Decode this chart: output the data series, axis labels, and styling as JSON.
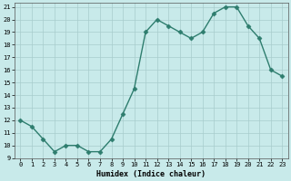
{
  "x": [
    0,
    1,
    2,
    3,
    4,
    5,
    6,
    7,
    8,
    9,
    10,
    11,
    12,
    13,
    14,
    15,
    16,
    17,
    18,
    19,
    20,
    21,
    22,
    23
  ],
  "y": [
    12,
    11.5,
    10.5,
    9.5,
    10,
    10,
    9.5,
    9.5,
    10.5,
    12.5,
    14.5,
    19,
    20,
    19.5,
    19,
    18.5,
    19,
    20.5,
    21,
    21,
    19.5,
    18.5,
    16,
    15.5
  ],
  "line_color": "#2e7d6e",
  "marker_color": "#2e7d6e",
  "bg_color": "#c8eaea",
  "grid_color": "#a8cccc",
  "xlabel": "Humidex (Indice chaleur)",
  "ylim": [
    9,
    21
  ],
  "xlim_min": -0.5,
  "xlim_max": 23.5,
  "yticks": [
    9,
    10,
    11,
    12,
    13,
    14,
    15,
    16,
    17,
    18,
    19,
    20,
    21
  ],
  "xticks": [
    0,
    1,
    2,
    3,
    4,
    5,
    6,
    7,
    8,
    9,
    10,
    11,
    12,
    13,
    14,
    15,
    16,
    17,
    18,
    19,
    20,
    21,
    22,
    23
  ],
  "tick_fontsize": 5,
  "xlabel_fontsize": 6,
  "marker_size": 2.5,
  "line_width": 1.0
}
